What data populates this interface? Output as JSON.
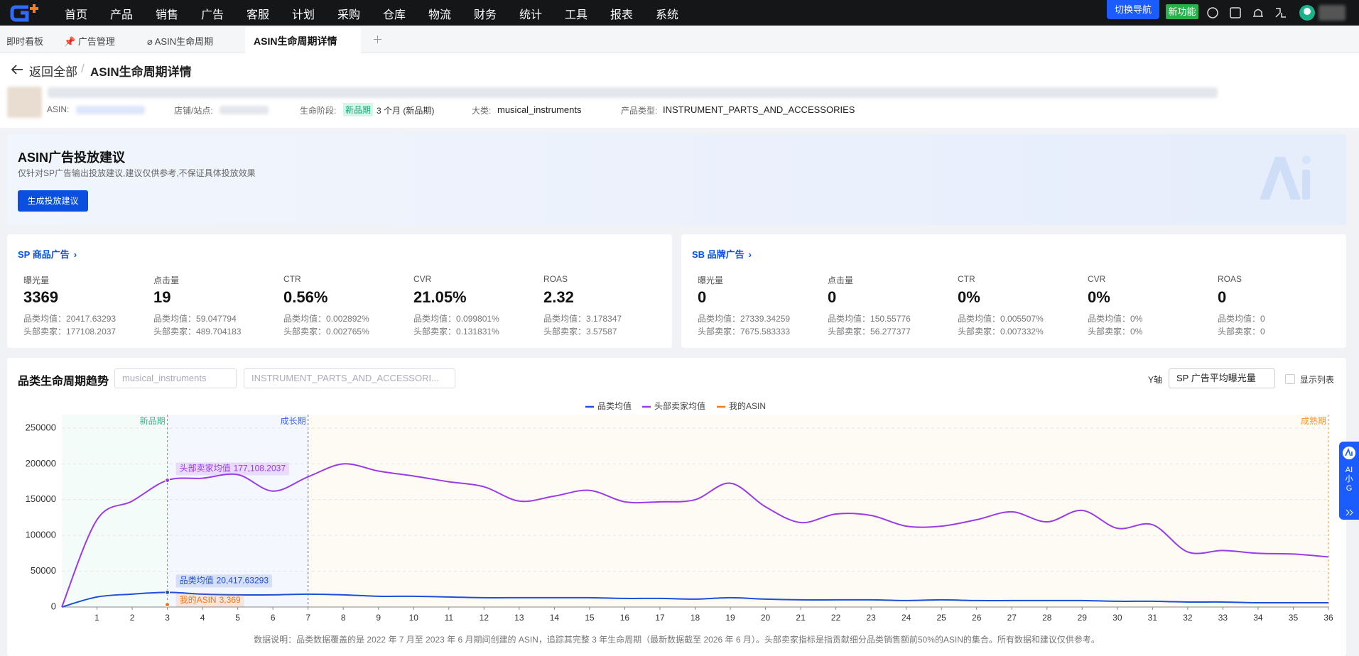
{
  "nav": {
    "menu": [
      "首页",
      "产品",
      "销售",
      "广告",
      "客服",
      "计划",
      "采购",
      "仓库",
      "物流",
      "财务",
      "统计",
      "工具",
      "报表",
      "系统"
    ],
    "switch_nav": "切换导航",
    "new_feature": "新功能"
  },
  "tabs": [
    "即时看板",
    "广告管理",
    "ASIN生命周期",
    "ASIN生命周期详情"
  ],
  "breadcrumb": {
    "back": "返回全部",
    "separator": "/",
    "current": "ASIN生命周期详情"
  },
  "product": {
    "asin_label": "ASIN:",
    "shop_label": "店铺/站点:",
    "stage_label": "生命阶段:",
    "stage_tag": "新品期",
    "stage_text": "3 个月 (新品期)",
    "category_label": "大类:",
    "category": "musical_instruments",
    "type_label": "产品类型:",
    "type": "INSTRUMENT_PARTS_AND_ACCESSORIES"
  },
  "ai_card": {
    "title": "ASIN广告投放建议",
    "subtitle": "仅针对SP广告输出投放建议,建议仅供参考,不保证具体投放效果",
    "button": "生成投放建议"
  },
  "ad_cards": [
    {
      "title": "SP 商品广告",
      "avg_label": "品类均值：",
      "top_label": "头部卖家：",
      "metrics": [
        {
          "name": "曝光量",
          "value": "3369",
          "avg": "20417.63293",
          "top": "177108.2037"
        },
        {
          "name": "点击量",
          "value": "19",
          "avg": "59.047794",
          "top": "489.704183"
        },
        {
          "name": "CTR",
          "value": "0.56%",
          "avg": "0.002892%",
          "top": "0.002765%"
        },
        {
          "name": "CVR",
          "value": "21.05%",
          "avg": "0.099801%",
          "top": "0.131831%"
        },
        {
          "name": "ROAS",
          "value": "2.32",
          "avg": "3.178347",
          "top": "3.57587"
        }
      ]
    },
    {
      "title": "SB 品牌广告",
      "avg_label": "品类均值：",
      "top_label": "头部卖家：",
      "metrics": [
        {
          "name": "曝光量",
          "value": "0",
          "avg": "27339.34259",
          "top": "7675.583333"
        },
        {
          "name": "点击量",
          "value": "0",
          "avg": "150.55776",
          "top": "56.277377"
        },
        {
          "name": "CTR",
          "value": "0%",
          "avg": "0.005507%",
          "top": "0.007332%"
        },
        {
          "name": "CVR",
          "value": "0%",
          "avg": "0%",
          "top": "0%"
        },
        {
          "name": "ROAS",
          "value": "0",
          "avg": "0",
          "top": "0"
        }
      ]
    }
  ],
  "trend": {
    "title": "品类生命周期趋势",
    "filter_category": "musical_instruments",
    "filter_type": "INSTRUMENT_PARTS_AND_ACCESSORI...",
    "y_axis_label": "Y轴",
    "y_axis_select": "SP 广告平均曝光量",
    "show_list": "显示列表",
    "note": "数据说明：品类数据覆盖的是 2022 年 7 月至 2023 年 6 月期间创建的 ASIN，追踪其完整 3 年生命周期（最新数据截至 2026 年 6 月）。头部卖家指标是指贡献细分品类销售额前50%的ASIN的集合。所有数据和建议仅供参考。"
  },
  "chart_data": {
    "type": "line",
    "grid": true,
    "x": [
      0,
      1,
      2,
      3,
      4,
      5,
      6,
      7,
      8,
      9,
      10,
      11,
      12,
      13,
      14,
      15,
      16,
      17,
      18,
      19,
      20,
      21,
      22,
      23,
      24,
      25,
      26,
      27,
      28,
      29,
      30,
      31,
      32,
      33,
      34,
      35,
      36
    ],
    "xlim": [
      0,
      36
    ],
    "xticks": [
      1,
      2,
      3,
      4,
      5,
      6,
      7,
      8,
      9,
      10,
      11,
      12,
      13,
      14,
      15,
      16,
      17,
      18,
      19,
      20,
      21,
      22,
      23,
      24,
      25,
      26,
      27,
      28,
      29,
      30,
      31,
      32,
      33,
      34,
      35,
      36
    ],
    "ylim": [
      0,
      250000
    ],
    "yticks": [
      0,
      50000,
      100000,
      150000,
      200000,
      250000
    ],
    "phases": [
      {
        "label": "新品期",
        "x": 3,
        "color": "#22c08e"
      },
      {
        "label": "成长期",
        "x": 7,
        "color": "#3a66e6"
      },
      {
        "label": "成熟期",
        "x": 36,
        "color": "#f5962f"
      }
    ],
    "series": [
      {
        "name": "品类均值",
        "color": "#1d4fd8",
        "values": [
          0,
          14000,
          18000,
          20417.63293,
          18000,
          17000,
          17000,
          18000,
          17000,
          15000,
          15000,
          14000,
          13000,
          13000,
          13000,
          13000,
          12000,
          12000,
          11000,
          13000,
          11000,
          10000,
          10000,
          10000,
          9000,
          10000,
          9000,
          9000,
          9000,
          9000,
          8000,
          8000,
          7000,
          7000,
          6000,
          6000,
          6000
        ],
        "value_labels": [
          null,
          null,
          null,
          "20,417.63293",
          null,
          null,
          null,
          null,
          null,
          null,
          null,
          null,
          null,
          null,
          null,
          null,
          null,
          null,
          null,
          null,
          null,
          null,
          null,
          null,
          null,
          null,
          null,
          null,
          null,
          null,
          null,
          null,
          null,
          null,
          null,
          null,
          null
        ]
      },
      {
        "name": "头部卖家均值",
        "color": "#9b3be6",
        "values": [
          0,
          122000,
          148000,
          177108.2037,
          180000,
          185000,
          162000,
          182000,
          200000,
          190000,
          183000,
          175000,
          168000,
          148000,
          155000,
          163000,
          147000,
          147000,
          150000,
          173000,
          140000,
          118000,
          130000,
          128000,
          113000,
          113000,
          122000,
          133000,
          119000,
          135000,
          110000,
          115000,
          77000,
          79000,
          75000,
          74000,
          70000
        ],
        "value_labels": [
          null,
          null,
          null,
          "177,108.2037",
          null,
          null,
          null,
          null,
          null,
          null,
          null,
          null,
          null,
          null,
          null,
          null,
          null,
          null,
          null,
          null,
          null,
          null,
          null,
          null,
          null,
          null,
          null,
          null,
          null,
          null,
          null,
          null,
          null,
          null,
          null,
          null,
          null
        ]
      },
      {
        "name": "我的ASIN",
        "color": "#f07a1a",
        "values": [
          null,
          null,
          null,
          3369,
          null,
          null,
          null,
          null,
          null,
          null,
          null,
          null,
          null,
          null,
          null,
          null,
          null,
          null,
          null,
          null,
          null,
          null,
          null,
          null,
          null,
          null,
          null,
          null,
          null,
          null,
          null,
          null,
          null,
          null,
          null,
          null,
          null
        ],
        "value_labels": [
          null,
          null,
          null,
          "3,369",
          null,
          null,
          null,
          null,
          null,
          null,
          null,
          null,
          null,
          null,
          null,
          null,
          null,
          null,
          null,
          null,
          null,
          null,
          null,
          null,
          null,
          null,
          null,
          null,
          null,
          null,
          null,
          null,
          null,
          null,
          null,
          null,
          null
        ]
      }
    ]
  },
  "assistant": {
    "lines": [
      "AI",
      "小",
      "G"
    ]
  }
}
